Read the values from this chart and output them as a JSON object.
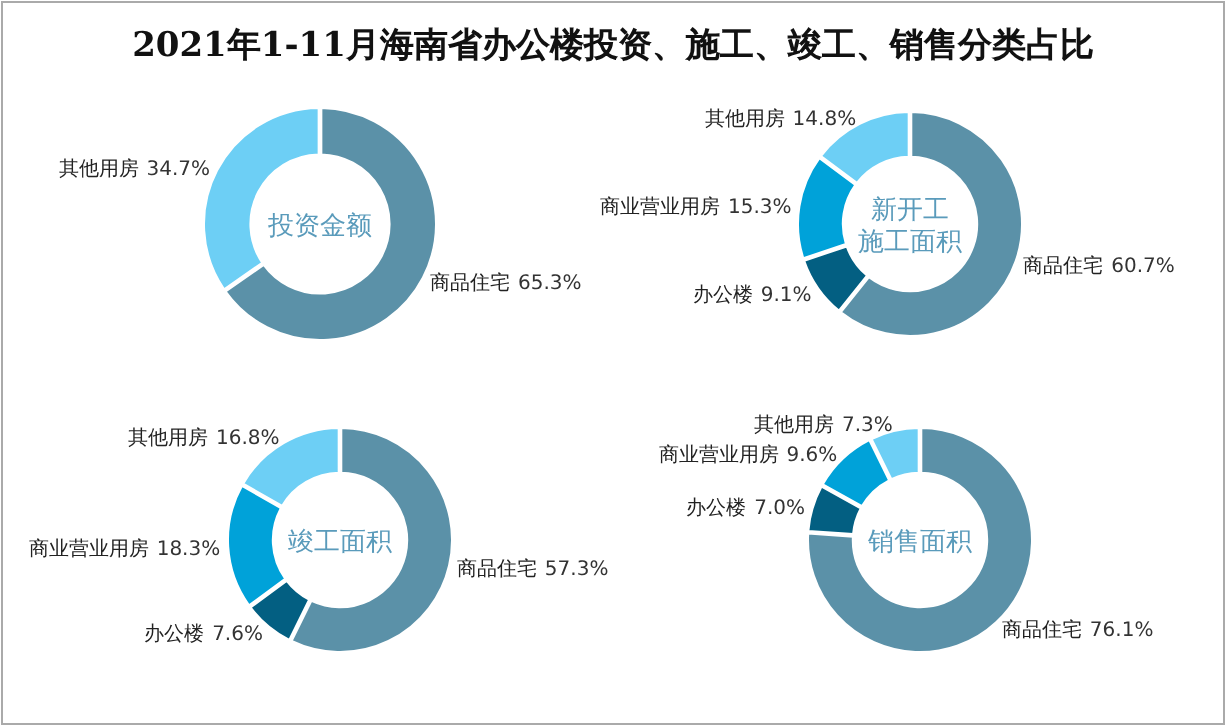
{
  "chart_data": [
    {
      "type": "other",
      "title": "2021年1-11月海南省办公楼投资、施工、竣工、销售分类占比"
    },
    {
      "type": "donut",
      "title": "投资金额",
      "categories": [
        "商品住宅",
        "其他用房"
      ],
      "values": [
        65.3,
        34.7
      ],
      "value_labels": [
        "65.3%",
        "34.7%"
      ],
      "colors": [
        "#5b91a8",
        "#6dcff5"
      ]
    },
    {
      "type": "donut",
      "title": "新开工施工面积",
      "categories": [
        "商品住宅",
        "办公楼",
        "商业营业用房",
        "其他用房"
      ],
      "values": [
        60.7,
        9.1,
        15.3,
        14.8
      ],
      "value_labels": [
        "60.7%",
        "9.1%",
        "15.3%",
        "14.8%"
      ],
      "colors": [
        "#5b91a8",
        "#035f82",
        "#00a2d9",
        "#6dcff5"
      ]
    },
    {
      "type": "donut",
      "title": "竣工面积",
      "categories": [
        "商品住宅",
        "办公楼",
        "商业营业用房",
        "其他用房"
      ],
      "values": [
        57.3,
        7.6,
        18.3,
        16.8
      ],
      "value_labels": [
        "57.3%",
        "7.6%",
        "18.3%",
        "16.8%"
      ],
      "colors": [
        "#5b91a8",
        "#035f82",
        "#00a2d9",
        "#6dcff5"
      ]
    },
    {
      "type": "donut",
      "title": "销售面积",
      "categories": [
        "商品住宅",
        "办公楼",
        "商业营业用房",
        "其他用房"
      ],
      "values": [
        76.1,
        7.0,
        9.6,
        7.3
      ],
      "value_labels": [
        "76.1%",
        "7.0%",
        "9.6%",
        "7.3%"
      ],
      "colors": [
        "#5b91a8",
        "#035f82",
        "#00a2d9",
        "#6dcff5"
      ]
    }
  ]
}
